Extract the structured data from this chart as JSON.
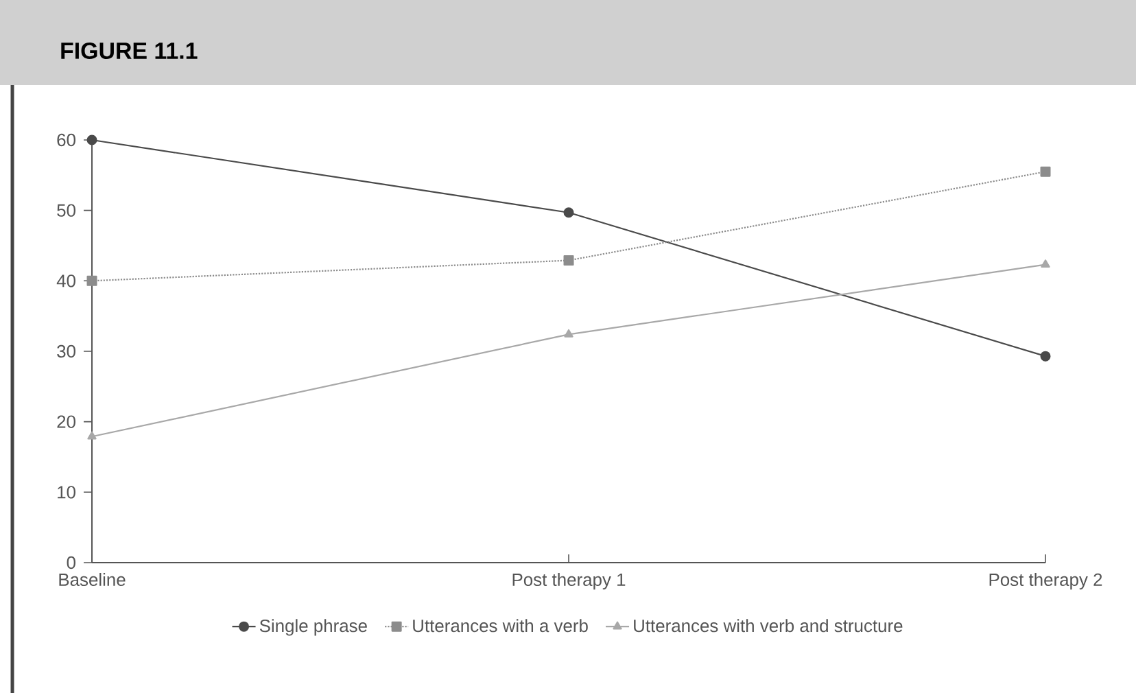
{
  "chart_data": {
    "type": "line",
    "title": "FIGURE 11.1",
    "categories": [
      "Baseline",
      "Post therapy 1",
      "Post therapy 2"
    ],
    "series": [
      {
        "name": "Single phrase",
        "color": "#4a4a4a",
        "values": [
          60,
          49.7,
          29.3
        ],
        "marker": "circle",
        "line_style": "solid"
      },
      {
        "name": "Utterances with a verb",
        "color": "#8c8c8c",
        "values": [
          40,
          42.9,
          55.5
        ],
        "marker": "square",
        "line_style": "dotted"
      },
      {
        "name": "Utterances with verb and structure",
        "color": "#a8a8a8",
        "values": [
          17.9,
          32.4,
          42.3
        ],
        "marker": "triangle",
        "line_style": "solid"
      }
    ],
    "ylim": [
      0,
      60
    ],
    "yticks": [
      0,
      10,
      20,
      30,
      40,
      50,
      60
    ],
    "grid": false,
    "legend": "bottom"
  }
}
